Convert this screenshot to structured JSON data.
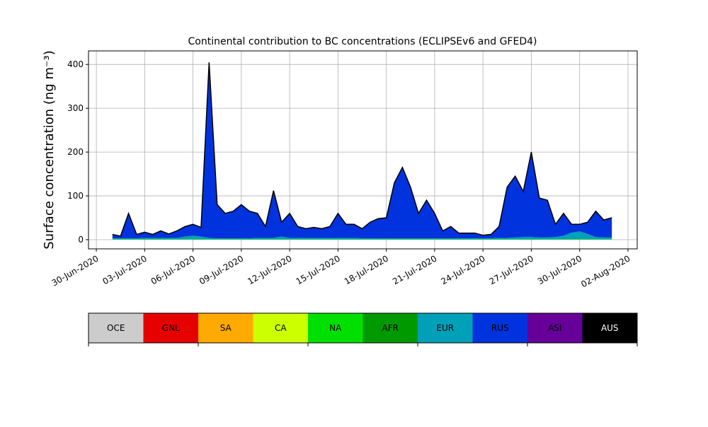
{
  "chart_data": {
    "type": "stacked_area",
    "title": "Continental contribution to BC concentrations (ECLIPSEv6 and GFED4)",
    "y_label": "Surface concentration (ng m⁻³)",
    "x": [
      "2020-07-01T00:00",
      "2020-07-01T12:00",
      "2020-07-02T00:00",
      "2020-07-02T12:00",
      "2020-07-03T00:00",
      "2020-07-03T12:00",
      "2020-07-04T00:00",
      "2020-07-04T12:00",
      "2020-07-05T00:00",
      "2020-07-05T12:00",
      "2020-07-06T00:00",
      "2020-07-06T12:00",
      "2020-07-07T00:00",
      "2020-07-07T12:00",
      "2020-07-08T00:00",
      "2020-07-08T12:00",
      "2020-07-09T00:00",
      "2020-07-09T12:00",
      "2020-07-10T00:00",
      "2020-07-10T12:00",
      "2020-07-11T00:00",
      "2020-07-11T12:00",
      "2020-07-12T00:00",
      "2020-07-12T12:00",
      "2020-07-13T00:00",
      "2020-07-13T12:00",
      "2020-07-14T00:00",
      "2020-07-14T12:00",
      "2020-07-15T00:00",
      "2020-07-15T12:00",
      "2020-07-16T00:00",
      "2020-07-16T12:00",
      "2020-07-17T00:00",
      "2020-07-17T12:00",
      "2020-07-18T00:00",
      "2020-07-18T12:00",
      "2020-07-19T00:00",
      "2020-07-19T12:00",
      "2020-07-20T00:00",
      "2020-07-20T12:00",
      "2020-07-21T00:00",
      "2020-07-21T12:00",
      "2020-07-22T00:00",
      "2020-07-22T12:00",
      "2020-07-23T00:00",
      "2020-07-23T12:00",
      "2020-07-24T00:00",
      "2020-07-24T12:00",
      "2020-07-25T00:00",
      "2020-07-25T12:00",
      "2020-07-26T00:00",
      "2020-07-26T12:00",
      "2020-07-27T00:00",
      "2020-07-27T12:00",
      "2020-07-28T00:00",
      "2020-07-28T12:00",
      "2020-07-29T00:00",
      "2020-07-29T12:00",
      "2020-07-30T00:00",
      "2020-07-30T12:00",
      "2020-07-31T00:00",
      "2020-07-31T12:00",
      "2020-08-01T00:00"
    ],
    "series": [
      {
        "name": "OCE",
        "color": "#cccccc",
        "values": [
          0,
          0,
          0,
          0,
          0,
          0,
          0,
          0,
          0,
          0,
          0,
          0,
          0,
          0,
          0,
          0,
          0,
          0,
          0,
          0,
          0,
          0,
          0,
          0,
          0,
          0,
          0,
          0,
          0,
          0,
          0,
          0,
          0,
          0,
          0,
          0,
          0,
          0,
          0,
          0,
          0,
          0,
          0,
          0,
          0,
          0,
          0,
          0,
          0,
          0,
          0,
          0,
          0,
          0,
          0,
          0,
          0,
          0,
          0,
          0,
          0,
          0,
          0
        ]
      },
      {
        "name": "GNL",
        "color": "#e60000",
        "values": [
          0,
          0,
          0,
          0,
          0,
          0,
          0,
          0,
          0,
          0,
          0,
          0,
          0,
          0,
          0,
          0,
          0,
          0,
          0,
          0,
          0,
          0,
          0,
          0,
          0,
          0,
          0,
          0,
          0,
          0,
          0,
          0,
          0,
          0,
          0,
          0,
          0,
          0,
          0,
          0,
          0,
          0,
          0,
          0,
          0,
          0,
          0,
          0,
          0,
          0,
          0,
          0,
          0,
          0,
          0,
          0,
          0,
          0,
          0,
          0,
          0,
          0,
          0
        ]
      },
      {
        "name": "SA",
        "color": "#ffaa00",
        "values": [
          0,
          0,
          0,
          0,
          0,
          0,
          0,
          0,
          0,
          0,
          0,
          0,
          0,
          0,
          0,
          0,
          0,
          0,
          0,
          0,
          0,
          0,
          0,
          0,
          0,
          0,
          0,
          0,
          0,
          0,
          0,
          0,
          0,
          0,
          0,
          0,
          0,
          0,
          0,
          0,
          0,
          0,
          0,
          0,
          0,
          0,
          0,
          0,
          0,
          0,
          0,
          0,
          0,
          0,
          0,
          0,
          0,
          0,
          0,
          0,
          0,
          0,
          0
        ]
      },
      {
        "name": "CA",
        "color": "#ccff00",
        "values": [
          0,
          0,
          0,
          0,
          0,
          0,
          0,
          0,
          0,
          0,
          0,
          0,
          0,
          0,
          0,
          0,
          0,
          0,
          0,
          0,
          0,
          0,
          0,
          0,
          0,
          0,
          0,
          0,
          0,
          0,
          0,
          0,
          0,
          0,
          0,
          0,
          0,
          0,
          0,
          0,
          0,
          0,
          0,
          0,
          0,
          0,
          0,
          0,
          0,
          0,
          0,
          0,
          0,
          0,
          0,
          0,
          0,
          0,
          0,
          0,
          0,
          0,
          0
        ]
      },
      {
        "name": "NA",
        "color": "#00e000",
        "values": [
          1,
          1,
          1,
          1,
          1,
          1,
          1,
          1,
          1,
          1,
          1,
          1,
          1,
          1,
          1,
          1,
          1,
          1,
          1,
          1,
          1,
          1,
          1,
          1,
          1,
          1,
          1,
          1,
          1,
          1,
          1,
          1,
          1,
          1,
          1,
          1,
          1,
          1,
          1,
          1,
          1,
          1,
          1,
          1,
          1,
          1,
          1,
          1,
          1,
          1,
          1,
          1,
          1,
          1,
          1,
          1,
          1,
          1,
          1,
          1,
          1,
          1,
          1
        ]
      },
      {
        "name": "AFR",
        "color": "#009900",
        "values": [
          0,
          0,
          0,
          0,
          0,
          0,
          0,
          0,
          0,
          0,
          0,
          0,
          0,
          0,
          0,
          0,
          0,
          0,
          0,
          0,
          0,
          0,
          0,
          0,
          0,
          0,
          0,
          0,
          0,
          0,
          0,
          0,
          0,
          0,
          0,
          0,
          0,
          0,
          0,
          0,
          0,
          0,
          0,
          0,
          0,
          0,
          0,
          0,
          0,
          0,
          0,
          0,
          0,
          0,
          0,
          0,
          0,
          0,
          0,
          0,
          0,
          0,
          0
        ]
      },
      {
        "name": "EUR",
        "color": "#00a0b8",
        "values": [
          2,
          2,
          2,
          2,
          3,
          3,
          3,
          3,
          3,
          6,
          8,
          6,
          3,
          2,
          2,
          2,
          2,
          2,
          3,
          3,
          3,
          6,
          3,
          3,
          3,
          3,
          3,
          3,
          3,
          3,
          3,
          2,
          2,
          2,
          2,
          2,
          2,
          2,
          2,
          2,
          2,
          2,
          2,
          2,
          2,
          2,
          2,
          2,
          3,
          3,
          4,
          5,
          5,
          4,
          4,
          5,
          8,
          15,
          18,
          12,
          5,
          4,
          4
        ]
      },
      {
        "name": "RUS",
        "color": "#0033dd",
        "values": [
          9,
          5,
          57,
          9,
          13,
          8,
          16,
          9,
          16,
          23,
          26,
          21,
          401,
          77,
          57,
          62,
          77,
          62,
          56,
          26,
          108,
          33,
          56,
          26,
          21,
          24,
          21,
          26,
          56,
          31,
          31,
          22,
          37,
          45,
          47,
          127,
          162,
          117,
          57,
          87,
          57,
          17,
          27,
          12,
          12,
          12,
          7,
          9,
          26,
          116,
          140,
          104,
          194,
          90,
          85,
          29,
          51,
          19,
          16,
          27,
          59,
          40,
          45
        ]
      },
      {
        "name": "ASI",
        "color": "#660099",
        "values": [
          0,
          0,
          0,
          0,
          0,
          0,
          0,
          0,
          0,
          0,
          0,
          0,
          0,
          0,
          0,
          0,
          0,
          0,
          0,
          0,
          0,
          0,
          0,
          0,
          0,
          0,
          0,
          0,
          0,
          0,
          0,
          0,
          0,
          0,
          0,
          0,
          0,
          0,
          0,
          0,
          0,
          0,
          0,
          0,
          0,
          0,
          0,
          0,
          0,
          0,
          0,
          0,
          0,
          0,
          0,
          0,
          0,
          0,
          0,
          0,
          0,
          0,
          0
        ]
      },
      {
        "name": "AUS",
        "color": "#000000",
        "values": [
          0,
          0,
          0,
          0,
          0,
          0,
          0,
          0,
          0,
          0,
          0,
          0,
          0,
          0,
          0,
          0,
          0,
          0,
          0,
          0,
          0,
          0,
          0,
          0,
          0,
          0,
          0,
          0,
          0,
          0,
          0,
          0,
          0,
          0,
          0,
          0,
          0,
          0,
          0,
          0,
          0,
          0,
          0,
          0,
          0,
          0,
          0,
          0,
          0,
          0,
          0,
          0,
          0,
          0,
          0,
          0,
          0,
          0,
          0,
          0,
          0,
          0,
          0
        ]
      }
    ],
    "xlim": [
      "2020-06-29T12:20",
      "2020-08-02T13:45"
    ],
    "xticks": [
      {
        "value": "2020-06-30T00:00",
        "label": "30-Jun-2020"
      },
      {
        "value": "2020-07-03T00:00",
        "label": "03-Jul-2020"
      },
      {
        "value": "2020-07-06T00:00",
        "label": "06-Jul-2020"
      },
      {
        "value": "2020-07-09T00:00",
        "label": "09-Jul-2020"
      },
      {
        "value": "2020-07-12T00:00",
        "label": "12-Jul-2020"
      },
      {
        "value": "2020-07-15T00:00",
        "label": "15-Jul-2020"
      },
      {
        "value": "2020-07-18T00:00",
        "label": "18-Jul-2020"
      },
      {
        "value": "2020-07-21T00:00",
        "label": "21-Jul-2020"
      },
      {
        "value": "2020-07-24T00:00",
        "label": "24-Jul-2020"
      },
      {
        "value": "2020-07-27T00:00",
        "label": "27-Jul-2020"
      },
      {
        "value": "2020-07-30T00:00",
        "label": "30-Jul-2020"
      },
      {
        "value": "2020-08-02T00:00",
        "label": "02-Aug-2020"
      }
    ],
    "ylim": [
      -21,
      431
    ],
    "yticks": [
      0,
      100,
      200,
      300,
      400
    ],
    "grid": true
  }
}
